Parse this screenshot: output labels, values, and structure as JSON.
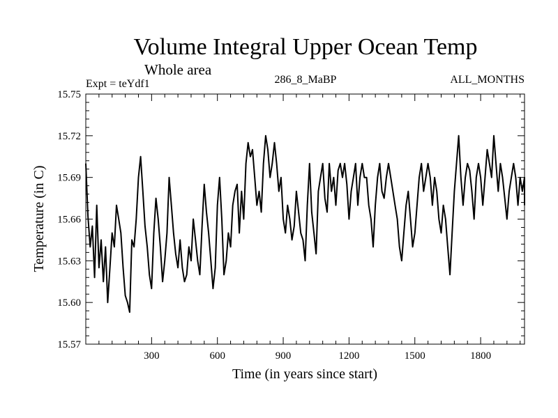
{
  "chart_data": {
    "type": "line",
    "title": "Volume Integral Upper Ocean Temp",
    "subtitle": "Whole area",
    "experiment_label": "Expt = teYdf1",
    "center_label": "286_8_MaBP",
    "right_label": "ALL_MONTHS",
    "xlabel": "Time (in years since start)",
    "ylabel": "Temperature (in C)",
    "xlim": [
      0,
      2000
    ],
    "ylim": [
      15.57,
      15.75
    ],
    "x_ticks": [
      300,
      600,
      900,
      1200,
      1500,
      1800
    ],
    "y_ticks": [
      "15.57",
      "15.60",
      "15.63",
      "15.66",
      "15.69",
      "15.72",
      "15.75"
    ],
    "series": [
      {
        "name": "Temperature",
        "x_step": 10,
        "values": [
          15.7,
          15.662,
          15.64,
          15.655,
          15.618,
          15.67,
          15.625,
          15.645,
          15.615,
          15.64,
          15.6,
          15.625,
          15.65,
          15.64,
          15.67,
          15.66,
          15.65,
          15.625,
          15.605,
          15.6,
          15.593,
          15.645,
          15.64,
          15.66,
          15.69,
          15.705,
          15.68,
          15.655,
          15.64,
          15.62,
          15.61,
          15.65,
          15.675,
          15.66,
          15.64,
          15.615,
          15.63,
          15.65,
          15.69,
          15.67,
          15.65,
          15.635,
          15.625,
          15.645,
          15.625,
          15.615,
          15.62,
          15.64,
          15.63,
          15.66,
          15.645,
          15.63,
          15.62,
          15.655,
          15.685,
          15.665,
          15.65,
          15.63,
          15.61,
          15.625,
          15.67,
          15.69,
          15.66,
          15.62,
          15.63,
          15.65,
          15.64,
          15.67,
          15.68,
          15.685,
          15.65,
          15.68,
          15.66,
          15.7,
          15.715,
          15.705,
          15.71,
          15.69,
          15.67,
          15.68,
          15.665,
          15.7,
          15.72,
          15.71,
          15.69,
          15.7,
          15.715,
          15.7,
          15.68,
          15.69,
          15.66,
          15.65,
          15.67,
          15.66,
          15.645,
          15.655,
          15.68,
          15.665,
          15.65,
          15.645,
          15.63,
          15.67,
          15.7,
          15.665,
          15.65,
          15.635,
          15.68,
          15.69,
          15.7,
          15.675,
          15.665,
          15.7,
          15.68,
          15.69,
          15.67,
          15.695,
          15.7,
          15.69,
          15.7,
          15.685,
          15.66,
          15.68,
          15.69,
          15.7,
          15.67,
          15.69,
          15.7,
          15.69,
          15.69,
          15.67,
          15.66,
          15.64,
          15.67,
          15.69,
          15.7,
          15.68,
          15.675,
          15.69,
          15.7,
          15.69,
          15.68,
          15.67,
          15.66,
          15.64,
          15.63,
          15.65,
          15.67,
          15.68,
          15.66,
          15.64,
          15.65,
          15.67,
          15.69,
          15.7,
          15.68,
          15.69,
          15.7,
          15.69,
          15.67,
          15.69,
          15.68,
          15.66,
          15.65,
          15.67,
          15.66,
          15.64,
          15.62,
          15.65,
          15.68,
          15.7,
          15.72,
          15.69,
          15.67,
          15.69,
          15.7,
          15.695,
          15.68,
          15.66,
          15.69,
          15.7,
          15.69,
          15.67,
          15.69,
          15.71,
          15.7,
          15.69,
          15.72,
          15.7,
          15.68,
          15.7,
          15.69,
          15.675,
          15.66,
          15.68,
          15.69,
          15.7,
          15.69,
          15.67,
          15.69,
          15.68,
          15.69,
          15.67
        ]
      }
    ]
  }
}
